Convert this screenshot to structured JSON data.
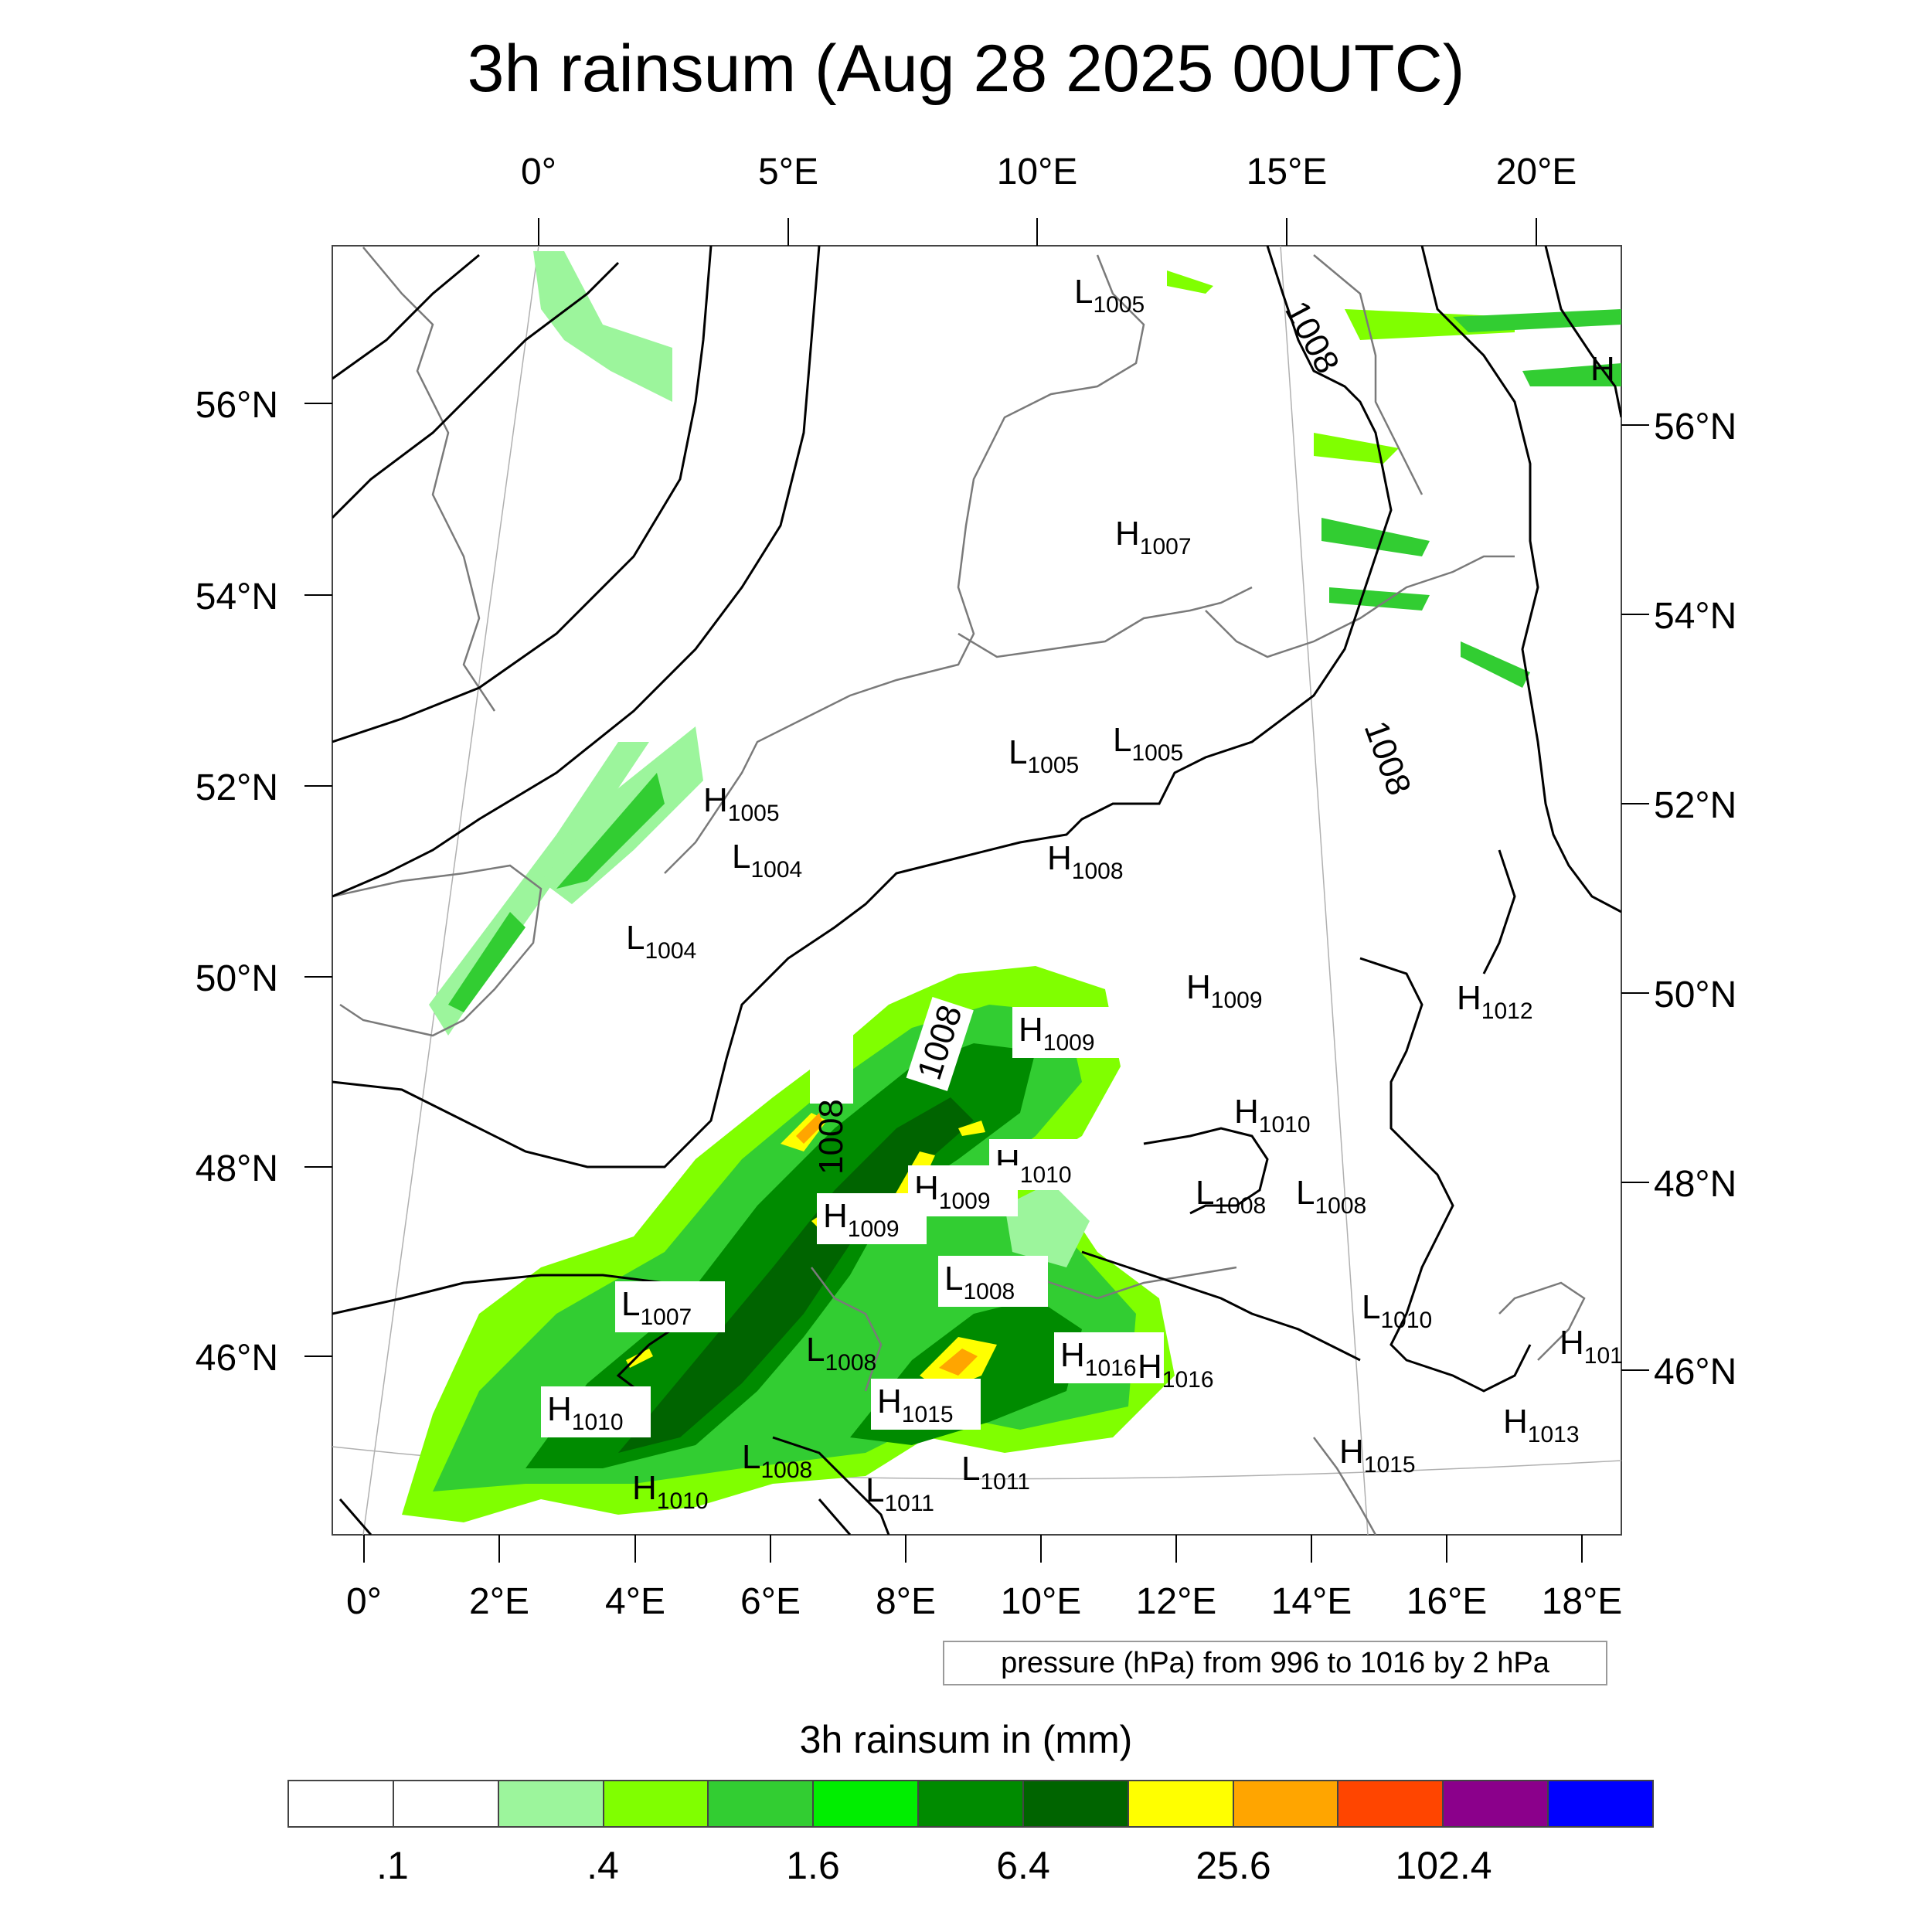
{
  "title": "3h rainsum (Aug 28 2025 00UTC)",
  "axes": {
    "top_lon": [
      "0°",
      "5°E",
      "10°E",
      "15°E",
      "20°E"
    ],
    "bottom_lon": [
      "0°",
      "2°E",
      "4°E",
      "6°E",
      "8°E",
      "10°E",
      "12°E",
      "14°E",
      "16°E",
      "18°E"
    ],
    "left_lat": [
      "56°N",
      "54°N",
      "52°N",
      "50°N",
      "48°N",
      "46°N"
    ],
    "right_lat": [
      "56°N",
      "54°N",
      "52°N",
      "50°N",
      "48°N",
      "46°N"
    ]
  },
  "pressure_markers": [
    {
      "type": "L",
      "value": "1005"
    },
    {
      "type": "H",
      "value": "1007"
    },
    {
      "type": "L",
      "value": "1005"
    },
    {
      "type": "L",
      "value": "1005"
    },
    {
      "type": "H",
      "value": "1005"
    },
    {
      "type": "L",
      "value": "1004"
    },
    {
      "type": "H",
      "value": "1008"
    },
    {
      "type": "L",
      "value": "1004"
    },
    {
      "type": "H",
      "value": "1009"
    },
    {
      "type": "H",
      "value": "1012"
    },
    {
      "type": "H",
      "value": "1009"
    },
    {
      "type": "H",
      "value": "1010"
    },
    {
      "type": "H",
      "value": "1010"
    },
    {
      "type": "H",
      "value": "1009"
    },
    {
      "type": "L",
      "value": "1008"
    },
    {
      "type": "L",
      "value": "1008"
    },
    {
      "type": "H",
      "value": "1009"
    },
    {
      "type": "L",
      "value": "1008"
    },
    {
      "type": "L",
      "value": "1007"
    },
    {
      "type": "L",
      "value": "1010"
    },
    {
      "type": "L",
      "value": "1008"
    },
    {
      "type": "H",
      "value": "1016"
    },
    {
      "type": "H",
      "value": "1016"
    },
    {
      "type": "H",
      "value": "1010"
    },
    {
      "type": "H",
      "value": "1015"
    },
    {
      "type": "L",
      "value": "1008"
    },
    {
      "type": "L",
      "value": "1011"
    },
    {
      "type": "L",
      "value": "1011"
    },
    {
      "type": "H",
      "value": "1010"
    },
    {
      "type": "H",
      "value": "1015"
    },
    {
      "type": "H",
      "value": "1013"
    },
    {
      "type": "H",
      "value": "101"
    },
    {
      "type": "H",
      "value": ""
    }
  ],
  "isobar_labels": [
    "1008",
    "1008",
    "1008",
    "1008"
  ],
  "note": "pressure (hPa) from 996 to 1016 by 2 hPa",
  "colorbar": {
    "title": "3h rainsum in (mm)",
    "labels": [
      ".1",
      ".4",
      "1.6",
      "6.4",
      "25.6",
      "102.4"
    ],
    "colors": [
      "#ffffff",
      "#ffffff",
      "#9cf59c",
      "#80ff00",
      "#32cd32",
      "#00ee00",
      "#008b00",
      "#006400",
      "#ffff00",
      "#ffa500",
      "#ff4500",
      "#8b008b",
      "#0000ff"
    ]
  }
}
